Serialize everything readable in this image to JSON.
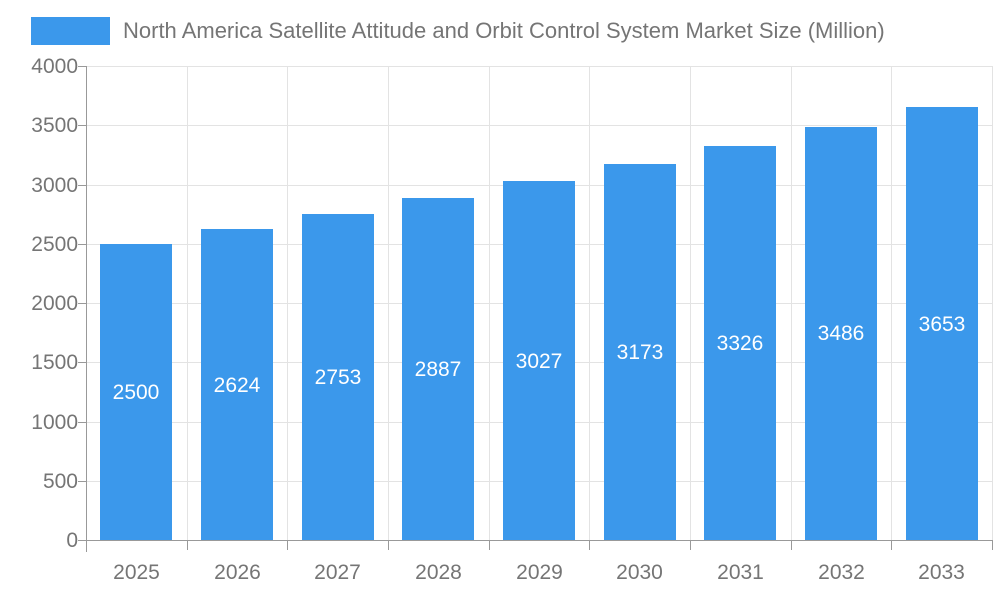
{
  "chart_data": {
    "type": "bar",
    "title": "North America Satellite Attitude and Orbit Control System Market Size (Million)",
    "categories": [
      "2025",
      "2026",
      "2027",
      "2028",
      "2029",
      "2030",
      "2031",
      "2032",
      "2033"
    ],
    "values": [
      2500,
      2624,
      2753,
      2887,
      3027,
      3173,
      3326,
      3486,
      3653
    ],
    "xlabel": "",
    "ylabel": "",
    "ylim": [
      0,
      4000
    ],
    "ytick_step": 500,
    "grid": true,
    "legend_position": "top-left",
    "value_labels": "inside-center",
    "colors": {
      "bar": "#3B98EB",
      "bar_value_text": "#FFFFFF",
      "axis_text": "#757575",
      "title_text": "#757575",
      "grid_line": "#E3E3E3",
      "axis_line": "#999999",
      "background": "#FFFFFF"
    }
  }
}
